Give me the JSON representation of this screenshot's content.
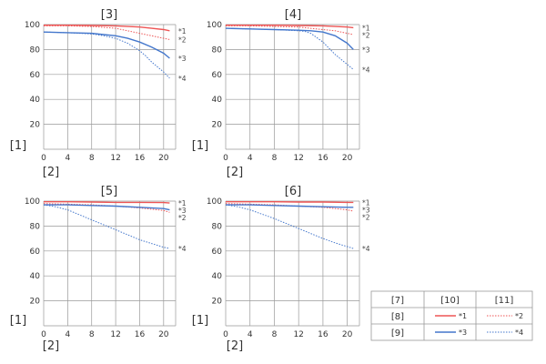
{
  "chart_data": [
    {
      "type": "line",
      "title": "[3]",
      "ylabel": "[1]",
      "xlabel": "[2]",
      "xlim": [
        0,
        22
      ],
      "ylim": [
        0,
        100
      ],
      "xticks": [
        "0",
        "4",
        "8",
        "12",
        "16",
        "20"
      ],
      "yticks": [
        "20",
        "40",
        "60",
        "80",
        "100"
      ],
      "series": [
        {
          "name": "*1",
          "color": "#ee5555",
          "style": "solid",
          "x": [
            0,
            4,
            8,
            12,
            14,
            16,
            18,
            20,
            21
          ],
          "y": [
            99.5,
            99.5,
            99.3,
            99,
            98.5,
            98,
            97,
            96,
            95
          ]
        },
        {
          "name": "*2",
          "color": "#ee5555",
          "style": "dotted",
          "x": [
            0,
            4,
            8,
            12,
            14,
            16,
            18,
            20,
            21
          ],
          "y": [
            99,
            99,
            98.5,
            97,
            95,
            93,
            91,
            89,
            88
          ]
        },
        {
          "name": "*3",
          "color": "#4477cc",
          "style": "solid",
          "x": [
            0,
            4,
            8,
            10,
            12,
            14,
            16,
            18,
            20,
            21
          ],
          "y": [
            94,
            93.5,
            93,
            92,
            91,
            89,
            86,
            82,
            77,
            73
          ]
        },
        {
          "name": "*4",
          "color": "#4477cc",
          "style": "dotted",
          "x": [
            0,
            4,
            8,
            10,
            12,
            14,
            16,
            17,
            18,
            20,
            21
          ],
          "y": [
            94,
            93.5,
            92.5,
            91,
            89,
            85,
            79,
            75,
            70,
            62,
            57
          ]
        }
      ]
    },
    {
      "type": "line",
      "title": "[4]",
      "ylabel": "[1]",
      "xlabel": "[2]",
      "xlim": [
        0,
        22
      ],
      "ylim": [
        0,
        100
      ],
      "xticks": [
        "0",
        "4",
        "8",
        "12",
        "16",
        "20"
      ],
      "yticks": [
        "20",
        "40",
        "60",
        "80",
        "100"
      ],
      "series": [
        {
          "name": "*1",
          "color": "#ee5555",
          "style": "solid",
          "x": [
            0,
            4,
            8,
            12,
            16,
            18,
            20,
            21
          ],
          "y": [
            99.5,
            99.5,
            99.5,
            99.3,
            99,
            98.5,
            98,
            97.5
          ]
        },
        {
          "name": "*2",
          "color": "#ee5555",
          "style": "dotted",
          "x": [
            0,
            4,
            8,
            12,
            14,
            16,
            18,
            20,
            21
          ],
          "y": [
            99,
            99,
            98.5,
            98,
            97,
            96,
            95,
            93,
            92
          ]
        },
        {
          "name": "*3",
          "color": "#4477cc",
          "style": "solid",
          "x": [
            0,
            4,
            8,
            12,
            14,
            16,
            18,
            20,
            21
          ],
          "y": [
            97,
            96.5,
            96,
            95.5,
            95,
            94,
            91,
            85,
            80
          ]
        },
        {
          "name": "*4",
          "color": "#4477cc",
          "style": "dotted",
          "x": [
            0,
            4,
            8,
            12,
            13,
            14,
            16,
            18,
            20,
            21
          ],
          "y": [
            97,
            96.5,
            96,
            95,
            94.5,
            93,
            86,
            76,
            68,
            64
          ]
        }
      ]
    },
    {
      "type": "line",
      "title": "[5]",
      "ylabel": "[1]",
      "xlabel": "[2]",
      "xlim": [
        0,
        22
      ],
      "ylim": [
        0,
        100
      ],
      "xticks": [
        "0",
        "4",
        "8",
        "12",
        "16",
        "20"
      ],
      "yticks": [
        "20",
        "40",
        "60",
        "80",
        "100"
      ],
      "series": [
        {
          "name": "*1",
          "color": "#ee5555",
          "style": "solid",
          "x": [
            0,
            4,
            8,
            12,
            16,
            20,
            21
          ],
          "y": [
            99.5,
            99.5,
            99.3,
            99,
            99,
            98.8,
            98.5
          ]
        },
        {
          "name": "*2",
          "color": "#ee5555",
          "style": "dotted",
          "x": [
            0,
            4,
            8,
            12,
            16,
            20,
            21
          ],
          "y": [
            98,
            97.5,
            97,
            96,
            94.5,
            92.5,
            91
          ]
        },
        {
          "name": "*3",
          "color": "#4477cc",
          "style": "solid",
          "x": [
            0,
            4,
            8,
            12,
            16,
            20,
            21
          ],
          "y": [
            97,
            97,
            96.5,
            96,
            95,
            94,
            93
          ]
        },
        {
          "name": "*4",
          "color": "#4477cc",
          "style": "dotted",
          "x": [
            0,
            2,
            4,
            6,
            8,
            10,
            12,
            14,
            16,
            18,
            20,
            21
          ],
          "y": [
            97,
            95.5,
            93,
            89,
            85,
            81,
            77,
            73,
            69,
            66,
            63,
            62
          ]
        }
      ]
    },
    {
      "type": "line",
      "title": "[6]",
      "ylabel": "[1]",
      "xlabel": "[2]",
      "xlim": [
        0,
        22
      ],
      "ylim": [
        0,
        100
      ],
      "xticks": [
        "0",
        "4",
        "8",
        "12",
        "16",
        "20"
      ],
      "yticks": [
        "20",
        "40",
        "60",
        "80",
        "100"
      ],
      "series": [
        {
          "name": "*1",
          "color": "#ee5555",
          "style": "solid",
          "x": [
            0,
            4,
            8,
            12,
            16,
            20,
            21
          ],
          "y": [
            99.5,
            99.5,
            99.5,
            99.3,
            99.3,
            99,
            99
          ]
        },
        {
          "name": "*2",
          "color": "#ee5555",
          "style": "dotted",
          "x": [
            0,
            4,
            8,
            12,
            16,
            20,
            21
          ],
          "y": [
            98,
            97.5,
            97,
            96,
            95,
            93,
            92
          ]
        },
        {
          "name": "*3",
          "color": "#4477cc",
          "style": "solid",
          "x": [
            0,
            4,
            8,
            12,
            16,
            20,
            21
          ],
          "y": [
            97,
            97,
            96.5,
            96,
            95.5,
            95,
            95
          ]
        },
        {
          "name": "*4",
          "color": "#4477cc",
          "style": "dotted",
          "x": [
            0,
            2,
            4,
            6,
            8,
            10,
            12,
            14,
            16,
            18,
            20,
            21
          ],
          "y": [
            97,
            95.5,
            93,
            89.5,
            86,
            82,
            78,
            74,
            70,
            66.5,
            63.5,
            62
          ]
        }
      ]
    }
  ],
  "legend": {
    "headers": [
      "[7]",
      "[10]",
      "[11]"
    ],
    "rows": [
      {
        "label": "[8]",
        "color": "#ee5555",
        "entries": [
          "*1",
          "*2"
        ]
      },
      {
        "label": "[9]",
        "color": "#4477cc",
        "entries": [
          "*3",
          "*4"
        ]
      }
    ]
  }
}
